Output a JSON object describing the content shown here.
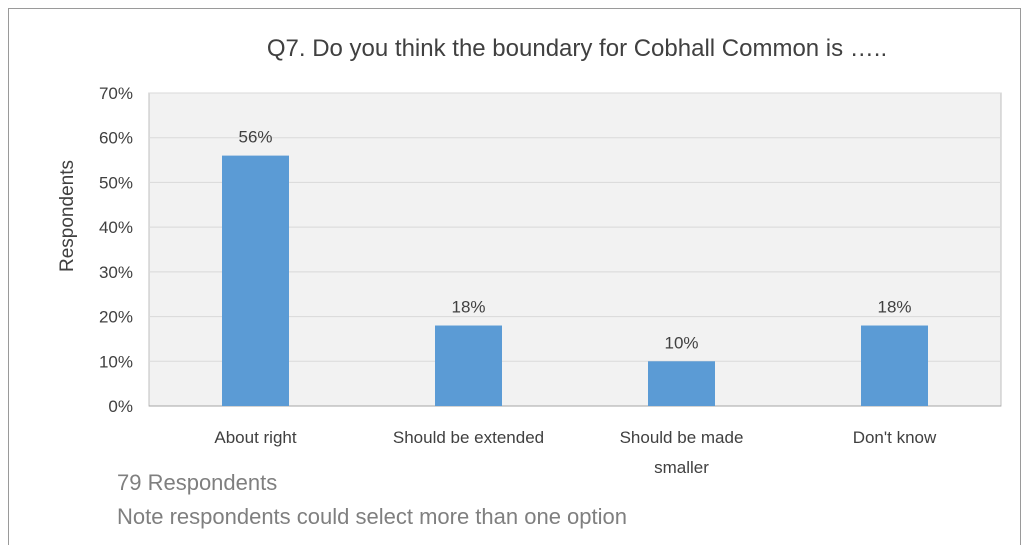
{
  "chart_data": {
    "type": "bar",
    "title": "Q7.  Do you think the boundary for Cobhall Common is …..",
    "xlabel": "",
    "ylabel": "Respondents",
    "categories": [
      [
        "About right"
      ],
      [
        "Should be extended"
      ],
      [
        "Should be made",
        "smaller"
      ],
      [
        "Don't know"
      ]
    ],
    "values": [
      56,
      18,
      10,
      18
    ],
    "data_labels": [
      "56%",
      "18%",
      "10%",
      "18%"
    ],
    "ylim": [
      0,
      70
    ],
    "yticks": [
      0,
      10,
      20,
      30,
      40,
      50,
      60,
      70
    ],
    "ytick_labels": [
      "0%",
      "10%",
      "20%",
      "30%",
      "40%",
      "50%",
      "60%",
      "70%"
    ],
    "grid": true,
    "legend": "none",
    "bar_color": "#5b9bd5",
    "plot_background": "#f2f2f2",
    "gridline_color": "#d9d9d9"
  },
  "notes": {
    "respondents": "79 Respondents",
    "multi_select": "Note respondents could select more than one option"
  }
}
